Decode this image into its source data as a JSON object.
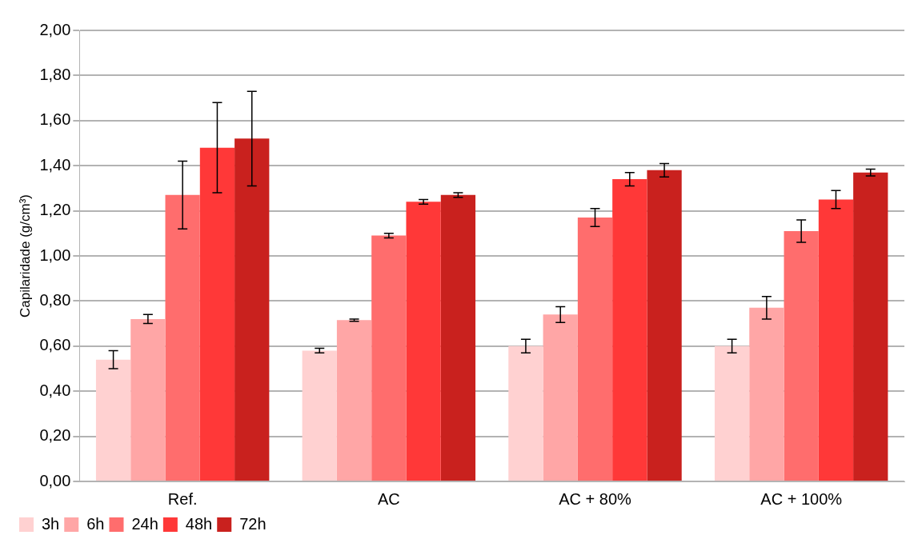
{
  "chart_data": {
    "type": "bar",
    "ylabel": "Capilaridade (g/cm³)",
    "categories": [
      "Ref.",
      "AC",
      "AC + 80%",
      "AC + 100%"
    ],
    "series": [
      {
        "name": "3h",
        "color": "#ffd1d1",
        "values": [
          0.54,
          0.58,
          0.6,
          0.6
        ],
        "errors": [
          0.04,
          0.01,
          0.03,
          0.03
        ]
      },
      {
        "name": "6h",
        "color": "#ffa6a6",
        "values": [
          0.72,
          0.715,
          0.74,
          0.77
        ],
        "errors": [
          0.02,
          0.005,
          0.035,
          0.05
        ]
      },
      {
        "name": "24h",
        "color": "#ff6d6d",
        "values": [
          1.27,
          1.09,
          1.17,
          1.11
        ],
        "errors": [
          0.15,
          0.01,
          0.04,
          0.05
        ]
      },
      {
        "name": "48h",
        "color": "#ff3838",
        "values": [
          1.48,
          1.24,
          1.34,
          1.25
        ],
        "errors": [
          0.2,
          0.01,
          0.03,
          0.04
        ]
      },
      {
        "name": "72h",
        "color": "#c9211e",
        "values": [
          1.52,
          1.27,
          1.38,
          1.37
        ],
        "errors": [
          0.21,
          0.01,
          0.03,
          0.015
        ]
      }
    ],
    "ylim": [
      0,
      2
    ],
    "yticks": [
      {
        "value": 0,
        "label": "0,00"
      },
      {
        "value": 0.2,
        "label": "0,20"
      },
      {
        "value": 0.4,
        "label": "0,40"
      },
      {
        "value": 0.6,
        "label": "0,60"
      },
      {
        "value": 0.8,
        "label": "0,80"
      },
      {
        "value": 1,
        "label": "1,00"
      },
      {
        "value": 1.2,
        "label": "1,20"
      },
      {
        "value": 1.4,
        "label": "1,40"
      },
      {
        "value": 1.6,
        "label": "1,60"
      },
      {
        "value": 1.8,
        "label": "1,80"
      },
      {
        "value": 2,
        "label": "2,00"
      }
    ],
    "grid": "y",
    "legend": "bottom left"
  }
}
